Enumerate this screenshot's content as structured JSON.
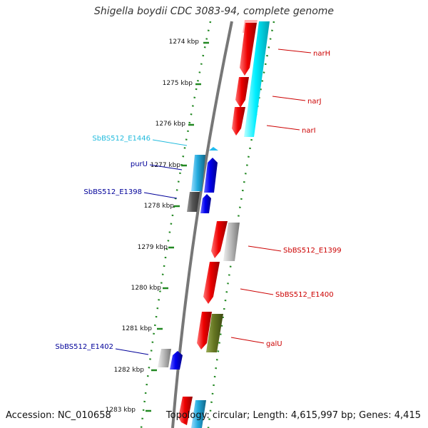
{
  "title": "Shigella boydii CDC 3083-94, complete genome",
  "footer": {
    "accession": "Accession: NC_010658",
    "summary": "Topology: circular; Length: 4,615,997 bp; Genes: 4,415"
  },
  "ticks": [
    "1274 kbp",
    "1275 kbp",
    "1276 kbp",
    "1277 kbp",
    "1278 kbp",
    "1279 kbp",
    "1280 kbp",
    "1281 kbp",
    "1282 kbp",
    "1283 kbp"
  ],
  "gene_labels": [
    {
      "id": "narH",
      "text": "narH",
      "color": "#cc0000"
    },
    {
      "id": "narJ",
      "text": "narJ",
      "color": "#cc0000"
    },
    {
      "id": "narI",
      "text": "narI",
      "color": "#cc0000"
    },
    {
      "id": "SbBS512_E1446",
      "text": "SbBS512_E1446",
      "color": "#22bbdd"
    },
    {
      "id": "purU",
      "text": "purU",
      "color": "#000099"
    },
    {
      "id": "SbBS512_E1398",
      "text": "SbBS512_E1398",
      "color": "#000099"
    },
    {
      "id": "SbBS512_E1399",
      "text": "SbBS512_E1399",
      "color": "#cc0000"
    },
    {
      "id": "SbBS512_E1400",
      "text": "SbBS512_E1400",
      "color": "#cc0000"
    },
    {
      "id": "galU",
      "text": "galU",
      "color": "#cc0000"
    },
    {
      "id": "SbBS512_E1402",
      "text": "SbBS512_E1402",
      "color": "#000099"
    }
  ],
  "colors": {
    "red": "#ee0000",
    "cyan": "#00ddee",
    "blue": "#0000ee",
    "light_blue": "#22aadd",
    "gray": "#aaaaaa",
    "dark_gray": "#555555",
    "olive": "#667722",
    "backbone": "#777777",
    "dots": "#228822"
  }
}
